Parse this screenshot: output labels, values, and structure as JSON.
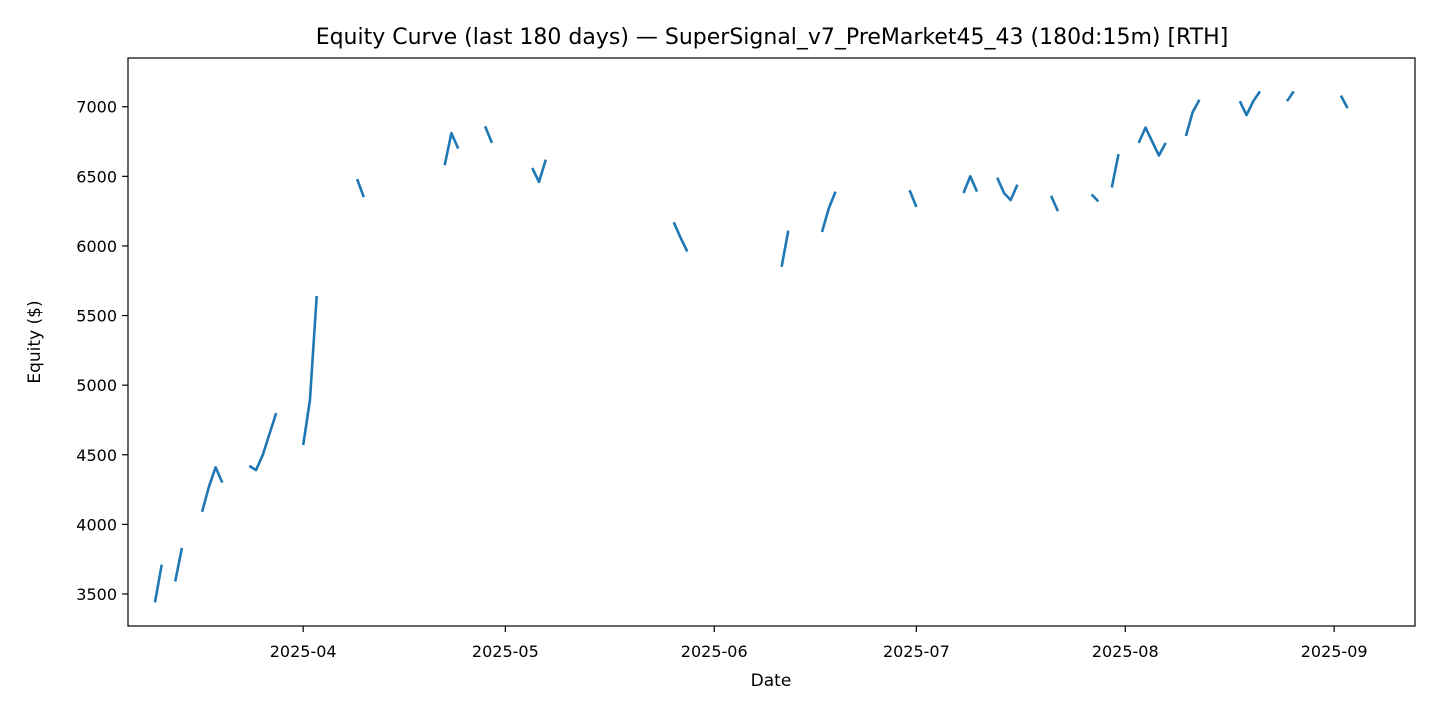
{
  "chart_data": {
    "type": "line",
    "title": "Equity Curve (last 180 days) — SuperSignal_v7_PreMarket45_43 (180d:15m) [RTH]",
    "xlabel": "Date",
    "ylabel": "Equity ($)",
    "xlim": [
      "2025-03-06",
      "2025-09-13"
    ],
    "ylim": [
      3270,
      7350
    ],
    "grid": false,
    "legend": "none",
    "line_color": "#1f77b4",
    "x_ticks": [
      "2025-04",
      "2025-05",
      "2025-06",
      "2025-07",
      "2025-08",
      "2025-09"
    ],
    "y_ticks": [
      3500,
      4000,
      4500,
      5000,
      5500,
      6000,
      6500,
      7000
    ],
    "segments": [
      {
        "x": [
          "2025-03-10",
          "2025-03-11"
        ],
        "y": [
          3440,
          3710
        ]
      },
      {
        "x": [
          "2025-03-13",
          "2025-03-14"
        ],
        "y": [
          3590,
          3830
        ]
      },
      {
        "x": [
          "2025-03-17",
          "2025-03-18",
          "2025-03-19",
          "2025-03-20"
        ],
        "y": [
          4090,
          4270,
          4410,
          4300
        ]
      },
      {
        "x": [
          "2025-03-24",
          "2025-03-25",
          "2025-03-26",
          "2025-03-27",
          "2025-03-28"
        ],
        "y": [
          4420,
          4390,
          4500,
          4650,
          4800
        ]
      },
      {
        "x": [
          "2025-04-01",
          "2025-04-02",
          "2025-04-03"
        ],
        "y": [
          4570,
          4890,
          5640
        ]
      },
      {
        "x": [
          "2025-04-09",
          "2025-04-10"
        ],
        "y": [
          6480,
          6350
        ]
      },
      {
        "x": [
          "2025-04-22",
          "2025-04-23",
          "2025-04-24"
        ],
        "y": [
          6580,
          6810,
          6700
        ]
      },
      {
        "x": [
          "2025-04-28",
          "2025-04-29"
        ],
        "y": [
          6860,
          6740
        ]
      },
      {
        "x": [
          "2025-05-05",
          "2025-05-06",
          "2025-05-07"
        ],
        "y": [
          6560,
          6460,
          6620
        ]
      },
      {
        "x": [
          "2025-05-26",
          "2025-05-27",
          "2025-05-28"
        ],
        "y": [
          6170,
          6060,
          5960
        ]
      },
      {
        "x": [
          "2025-06-11",
          "2025-06-12"
        ],
        "y": [
          5850,
          6110
        ]
      },
      {
        "x": [
          "2025-06-17",
          "2025-06-18",
          "2025-06-19"
        ],
        "y": [
          6100,
          6270,
          6390
        ]
      },
      {
        "x": [
          "2025-06-30",
          "2025-07-01"
        ],
        "y": [
          6400,
          6280
        ]
      },
      {
        "x": [
          "2025-07-08",
          "2025-07-09",
          "2025-07-10"
        ],
        "y": [
          6380,
          6500,
          6390
        ]
      },
      {
        "x": [
          "2025-07-13",
          "2025-07-14",
          "2025-07-15",
          "2025-07-16"
        ],
        "y": [
          6490,
          6380,
          6330,
          6440
        ]
      },
      {
        "x": [
          "2025-07-21",
          "2025-07-22"
        ],
        "y": [
          6360,
          6250
        ]
      },
      {
        "x": [
          "2025-07-27",
          "2025-07-28"
        ],
        "y": [
          6370,
          6320
        ]
      },
      {
        "x": [
          "2025-07-30",
          "2025-07-31"
        ],
        "y": [
          6420,
          6660
        ]
      },
      {
        "x": [
          "2025-08-03",
          "2025-08-04",
          "2025-08-05",
          "2025-08-06",
          "2025-08-07"
        ],
        "y": [
          6740,
          6850,
          6750,
          6650,
          6740
        ]
      },
      {
        "x": [
          "2025-08-10",
          "2025-08-11",
          "2025-08-12"
        ],
        "y": [
          6790,
          6960,
          7050
        ]
      },
      {
        "x": [
          "2025-08-18",
          "2025-08-19",
          "2025-08-20",
          "2025-08-21"
        ],
        "y": [
          7040,
          6940,
          7040,
          7110
        ]
      },
      {
        "x": [
          "2025-08-25",
          "2025-08-26"
        ],
        "y": [
          7040,
          7110
        ]
      },
      {
        "x": [
          "2025-09-02",
          "2025-09-03"
        ],
        "y": [
          7080,
          6990
        ]
      }
    ]
  }
}
